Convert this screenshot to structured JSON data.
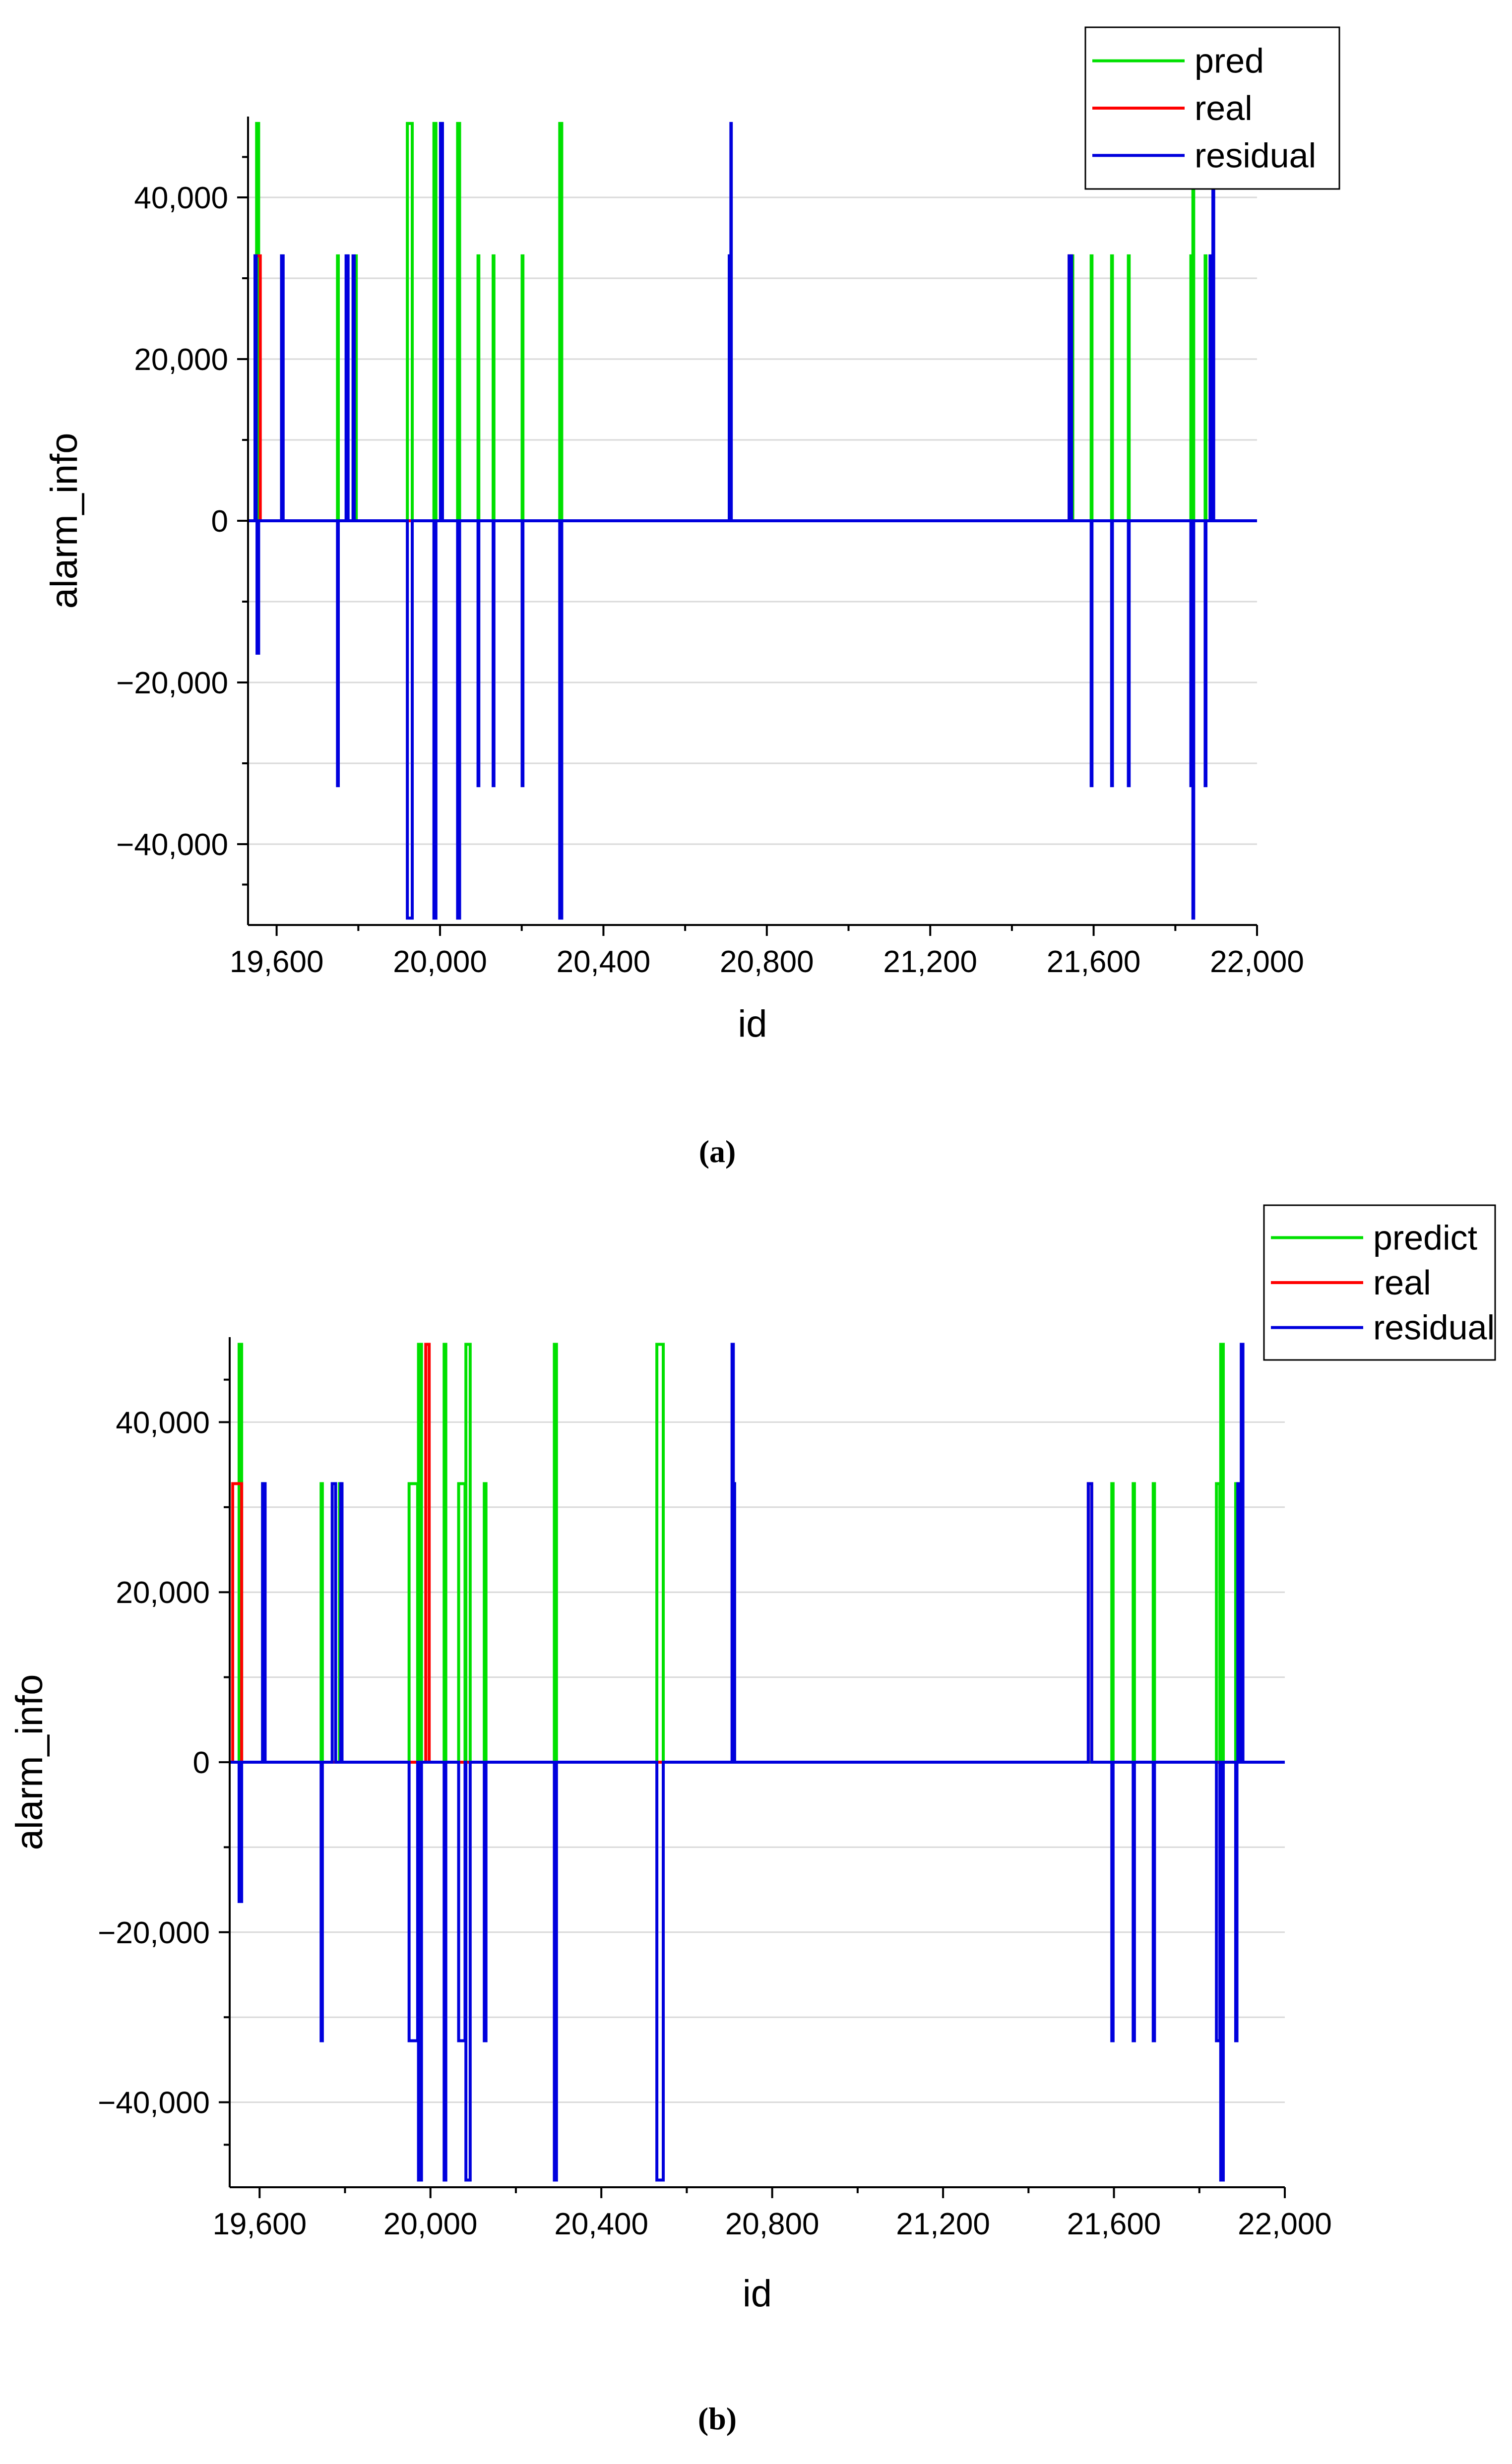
{
  "figure": {
    "panels": [
      {
        "caption": "(a)"
      },
      {
        "caption": "(b)"
      }
    ]
  },
  "colors": {
    "pred": "#00e000",
    "real": "#ff0000",
    "residual": "#0000dd",
    "grid": "#d9d9d9",
    "axis": "#000000"
  },
  "chart_data": [
    {
      "type": "line",
      "title": "",
      "xlabel": "id",
      "ylabel": "alarm_info",
      "xlim": [
        19530,
        22000
      ],
      "ylim": [
        -50000,
        50000
      ],
      "xticks": [
        19600,
        20000,
        20400,
        20800,
        21200,
        21600,
        22000
      ],
      "xtick_labels": [
        "19,600",
        "20,000",
        "20,400",
        "20,800",
        "21,200",
        "21,600",
        "22,000"
      ],
      "yticks": [
        -40000,
        -20000,
        0,
        20000,
        40000
      ],
      "ytick_labels": [
        "−40,000",
        "−20,000",
        "0",
        "20,000",
        "40,000"
      ],
      "grid": true,
      "legend_position": "top-right",
      "series": [
        {
          "name": "pred",
          "color": "#00e000",
          "pulses": [
            [
              19547,
              19549,
              32767
            ],
            [
              19551,
              19556,
              49151
            ],
            [
              19612,
              19614,
              32767
            ],
            [
              19749,
              19751,
              32767
            ],
            [
              19772,
              19774,
              32767
            ],
            [
              19793,
              19795,
              32767
            ],
            [
              19920,
              19932,
              49151
            ],
            [
              19985,
              19990,
              49151
            ],
            [
              20002,
              20004,
              49151
            ],
            [
              20043,
              20048,
              49151
            ],
            [
              20093,
              20095,
              32767
            ],
            [
              20130,
              20132,
              32767
            ],
            [
              20201,
              20203,
              32767
            ],
            [
              20293,
              20298,
              49151
            ],
            [
              20708,
              20710,
              32767
            ],
            [
              21546,
              21549,
              32767
            ],
            [
              21594,
              21596,
              32767
            ],
            [
              21644,
              21646,
              32767
            ],
            [
              21685,
              21687,
              32767
            ],
            [
              21838,
              21841,
              32767
            ],
            [
              21843,
              21845,
              49151
            ],
            [
              21873,
              21875,
              32767
            ]
          ]
        },
        {
          "name": "real",
          "color": "#ff0000",
          "pulses": [
            [
              19547,
              19560,
              32767
            ],
            [
              21540,
              21546,
              32767
            ]
          ]
        },
        {
          "name": "residual",
          "color": "#0000dd",
          "pulses": [
            [
              19547,
              19550,
              32767
            ],
            [
              19552,
              19556,
              -16384
            ],
            [
              19612,
              19616,
              32767
            ],
            [
              19749,
              19751,
              -32767
            ],
            [
              19770,
              19775,
              32767
            ],
            [
              19787,
              19790,
              32767
            ],
            [
              19920,
              19932,
              -49151
            ],
            [
              19985,
              19990,
              -49151
            ],
            [
              20001,
              20006,
              49151
            ],
            [
              20043,
              20048,
              -49151
            ],
            [
              20093,
              20095,
              -32767
            ],
            [
              20130,
              20132,
              -32767
            ],
            [
              20201,
              20203,
              -32767
            ],
            [
              20293,
              20298,
              -49151
            ],
            [
              20708,
              20711,
              32767
            ],
            [
              20712,
              20713,
              49151
            ],
            [
              21540,
              21546,
              32767
            ],
            [
              21594,
              21596,
              -32767
            ],
            [
              21644,
              21646,
              -32767
            ],
            [
              21685,
              21687,
              -32767
            ],
            [
              21838,
              21841,
              -32767
            ],
            [
              21843,
              21845,
              -49151
            ],
            [
              21873,
              21875,
              -32767
            ],
            [
              21885,
              21888,
              32767
            ],
            [
              21892,
              21894,
              49151
            ]
          ]
        }
      ]
    },
    {
      "type": "line",
      "title": "",
      "xlabel": "id",
      "ylabel": "alarm_info",
      "xlim": [
        19530,
        22000
      ],
      "ylim": [
        -50000,
        50000
      ],
      "xticks": [
        19600,
        20000,
        20400,
        20800,
        21200,
        21600,
        22000
      ],
      "xtick_labels": [
        "19,600",
        "20,000",
        "20,400",
        "20,800",
        "21,200",
        "21,600",
        "22,000"
      ],
      "yticks": [
        -40000,
        -20000,
        0,
        20000,
        40000
      ],
      "ytick_labels": [
        "−40,000",
        "−20,000",
        "0",
        "20,000",
        "40,000"
      ],
      "grid": true,
      "legend_position": "top-right",
      "series": [
        {
          "name": "predict",
          "color": "#00e000",
          "pulses": [
            [
              19552,
              19558,
              49151
            ],
            [
              19607,
              19609,
              32767
            ],
            [
              19744,
              19747,
              32767
            ],
            [
              19787,
              19790,
              32767
            ],
            [
              19950,
              19970,
              32767
            ],
            [
              19972,
              19979,
              49151
            ],
            [
              20032,
              20036,
              49151
            ],
            [
              20066,
              20081,
              32767
            ],
            [
              20083,
              20093,
              49151
            ],
            [
              20126,
              20130,
              32767
            ],
            [
              20290,
              20295,
              49151
            ],
            [
              20530,
              20545,
              49151
            ],
            [
              20710,
              20712,
              32767
            ],
            [
              21595,
              21598,
              32767
            ],
            [
              21645,
              21648,
              32767
            ],
            [
              21692,
              21695,
              32767
            ],
            [
              21840,
              21848,
              32767
            ],
            [
              21850,
              21856,
              49151
            ],
            [
              21885,
              21888,
              32767
            ]
          ]
        },
        {
          "name": "real",
          "color": "#ff0000",
          "pulses": [
            [
              19537,
              19558,
              32767
            ],
            [
              19989,
              19997,
              49151
            ],
            [
              21540,
              21548,
              32767
            ]
          ]
        },
        {
          "name": "residual",
          "color": "#0000dd",
          "pulses": [
            [
              19552,
              19558,
              -16384
            ],
            [
              19607,
              19613,
              32767
            ],
            [
              19744,
              19747,
              -32767
            ],
            [
              19770,
              19778,
              32767
            ],
            [
              19790,
              19793,
              32767
            ],
            [
              19950,
              19970,
              -32767
            ],
            [
              19972,
              19979,
              -49151
            ],
            [
              20032,
              20036,
              -49151
            ],
            [
              20066,
              20081,
              -32767
            ],
            [
              20083,
              20093,
              -49151
            ],
            [
              20126,
              20130,
              -32767
            ],
            [
              20290,
              20295,
              -49151
            ],
            [
              20530,
              20545,
              -49151
            ],
            [
              20706,
              20709,
              49151
            ],
            [
              20710,
              20712,
              32767
            ],
            [
              21540,
              21548,
              32767
            ],
            [
              21595,
              21598,
              -32767
            ],
            [
              21645,
              21648,
              -32767
            ],
            [
              21692,
              21695,
              -32767
            ],
            [
              21840,
              21848,
              -32767
            ],
            [
              21850,
              21856,
              -49151
            ],
            [
              21885,
              21888,
              -32767
            ],
            [
              21890,
              21893,
              32767
            ],
            [
              21898,
              21902,
              49151
            ]
          ]
        }
      ]
    }
  ]
}
